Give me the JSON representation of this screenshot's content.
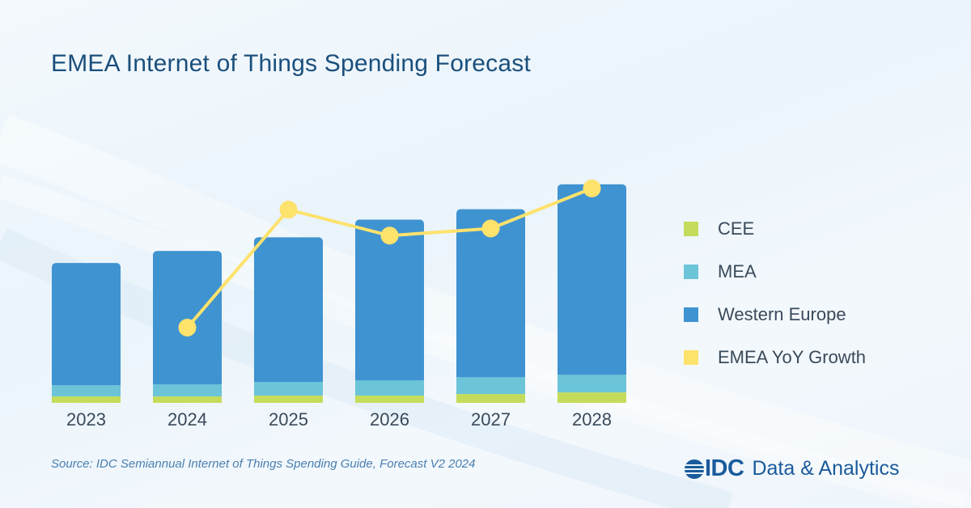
{
  "title": "EMEA Internet of Things Spending Forecast",
  "source": "Source: IDC Semiannual Internet of Things Spending Guide, Forecast V2 2024",
  "logo": {
    "brand": "IDC",
    "tagline": "Data & Analytics"
  },
  "colors": {
    "cee": "#c5dc5a",
    "mea": "#6cc4d8",
    "western_europe": "#3f93d1",
    "growth": "#fde26c",
    "title": "#1b4f7c",
    "brand": "#1a5b9c"
  },
  "legend": [
    {
      "label": "CEE",
      "color": "#c5dc5a"
    },
    {
      "label": "MEA",
      "color": "#6cc4d8"
    },
    {
      "label": "Western Europe",
      "color": "#3f93d1"
    },
    {
      "label": "EMEA YoY Growth",
      "color": "#fde26c"
    }
  ],
  "chart_data": {
    "type": "bar",
    "stacked": true,
    "categories": [
      "2023",
      "2024",
      "2025",
      "2026",
      "2027",
      "2028"
    ],
    "ylim": [
      0,
      300
    ],
    "series": [
      {
        "name": "CEE",
        "values": [
          8,
          8,
          9,
          9,
          11,
          13
        ]
      },
      {
        "name": "MEA",
        "values": [
          14,
          15,
          17,
          19,
          21,
          22
        ]
      },
      {
        "name": "Western Europe",
        "values": [
          152,
          166,
          180,
          200,
          209,
          237
        ]
      }
    ],
    "line_series": {
      "name": "EMEA YoY Growth",
      "type": "line",
      "values": [
        null,
        0.0,
        1.0,
        0.78,
        0.84,
        1.18
      ],
      "ylim": [
        0,
        1.2
      ]
    },
    "legend_position": "right",
    "grid": false
  }
}
